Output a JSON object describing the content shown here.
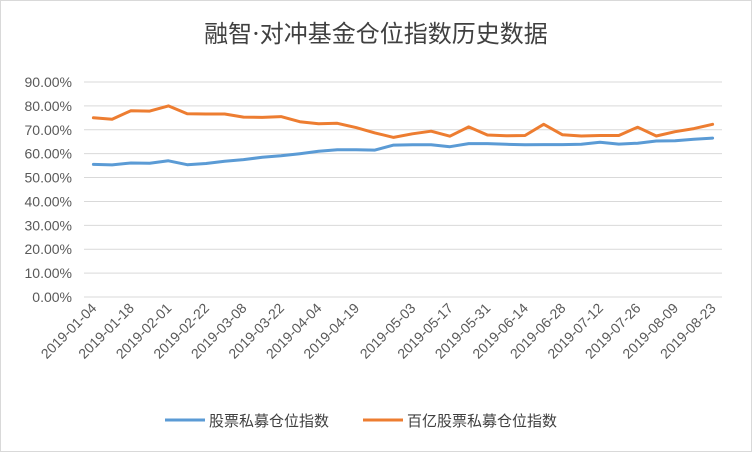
{
  "chart_data": {
    "type": "line",
    "title": "融智·对冲基金仓位指数历史数据",
    "xlabel": "",
    "ylabel": "",
    "ylim": [
      0,
      90
    ],
    "y_ticks": [
      "0.00%",
      "10.00%",
      "20.00%",
      "30.00%",
      "40.00%",
      "50.00%",
      "60.00%",
      "70.00%",
      "80.00%",
      "90.00%"
    ],
    "x_tick_labels": [
      "2019-01-04",
      "2019-01-18",
      "2019-02-01",
      "2019-02-22",
      "2019-03-08",
      "2019-03-22",
      "2019-04-04",
      "2019-04-19",
      "2019-05-03",
      "2019-05-17",
      "2019-05-31",
      "2019-06-14",
      "2019-06-28",
      "2019-07-12",
      "2019-07-26",
      "2019-08-09",
      "2019-08-23"
    ],
    "legend_position": "bottom",
    "series": [
      {
        "name": "股票私募仓位指数",
        "color": "#5b9bd5",
        "values": [
          55.5,
          55.3,
          56.1,
          56.0,
          57.0,
          55.4,
          55.9,
          56.8,
          57.5,
          58.5,
          59.1,
          60.0,
          61.0,
          61.6,
          61.6,
          61.5,
          63.6,
          63.7,
          63.7,
          62.9,
          64.2,
          64.2,
          63.9,
          63.7,
          63.8,
          63.8,
          63.9,
          64.8,
          64.0,
          64.4,
          65.3,
          65.4,
          66.0,
          66.5
        ]
      },
      {
        "name": "百亿股票私募仓位指数",
        "color": "#ed7d31",
        "values": [
          75.0,
          74.4,
          78.0,
          77.8,
          80.0,
          76.7,
          76.6,
          76.6,
          75.3,
          75.2,
          75.5,
          73.4,
          72.5,
          72.7,
          70.9,
          68.7,
          66.8,
          68.3,
          69.4,
          67.3,
          71.2,
          67.8,
          67.5,
          67.6,
          72.3,
          67.9,
          67.4,
          67.6,
          67.6,
          71.1,
          67.4,
          69.2,
          70.5,
          72.3
        ]
      }
    ]
  }
}
